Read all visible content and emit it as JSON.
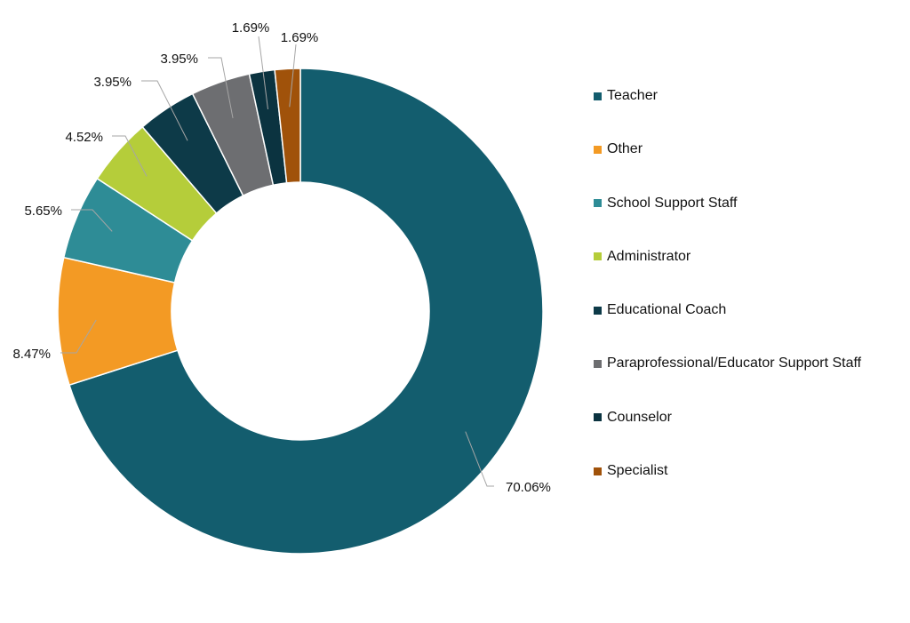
{
  "chart_data": {
    "type": "pie",
    "variant": "donut",
    "slices": [
      {
        "label": "Teacher",
        "value": 70.06,
        "value_label": "70.06%",
        "color": "#135d6e"
      },
      {
        "label": "Other",
        "value": 8.47,
        "value_label": "8.47%",
        "color": "#f39a24"
      },
      {
        "label": "School Support Staff",
        "value": 5.65,
        "value_label": "5.65%",
        "color": "#2e8c96"
      },
      {
        "label": "Administrator",
        "value": 4.52,
        "value_label": "4.52%",
        "color": "#b5cd3a"
      },
      {
        "label": "Educational Coach",
        "value": 3.95,
        "value_label": "3.95%",
        "color": "#0d3a48"
      },
      {
        "label": "Paraprofessional/Educator Support Staff",
        "value": 3.95,
        "value_label": "3.95%",
        "color": "#6d6e71"
      },
      {
        "label": "Counselor",
        "value": 1.69,
        "value_label": "1.69%",
        "color": "#0b3340"
      },
      {
        "label": "Specialist",
        "value": 1.69,
        "value_label": "1.69%",
        "color": "#a0520a"
      }
    ],
    "legend_position": "right",
    "start_angle": "12 o'clock",
    "direction": "clockwise"
  }
}
